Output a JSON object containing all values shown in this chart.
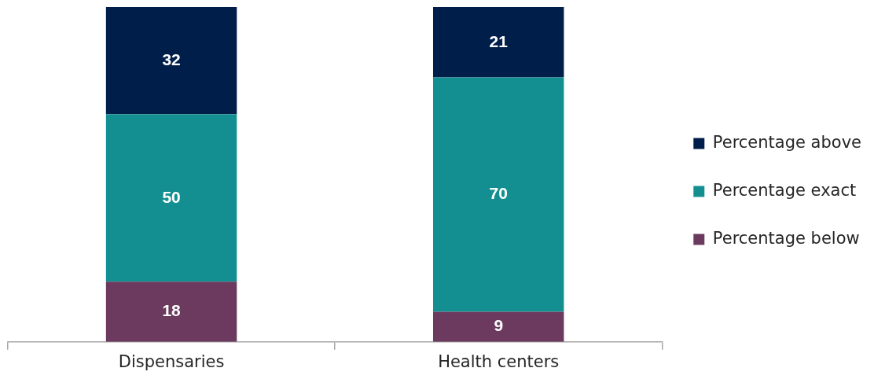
{
  "chart_data": {
    "type": "bar",
    "stacked": true,
    "categories": [
      "Dispensaries",
      "Health centers"
    ],
    "series": [
      {
        "name": "Percentage below",
        "color": "#6b3a5e",
        "values": [
          18,
          9
        ]
      },
      {
        "name": "Percentage exact",
        "color": "#148f91",
        "values": [
          50,
          70
        ]
      },
      {
        "name": "Percentage above",
        "color": "#001e4a",
        "values": [
          32,
          21
        ]
      }
    ],
    "data_labels": true,
    "legend": "right",
    "tick_labels": "x",
    "grid": false
  }
}
